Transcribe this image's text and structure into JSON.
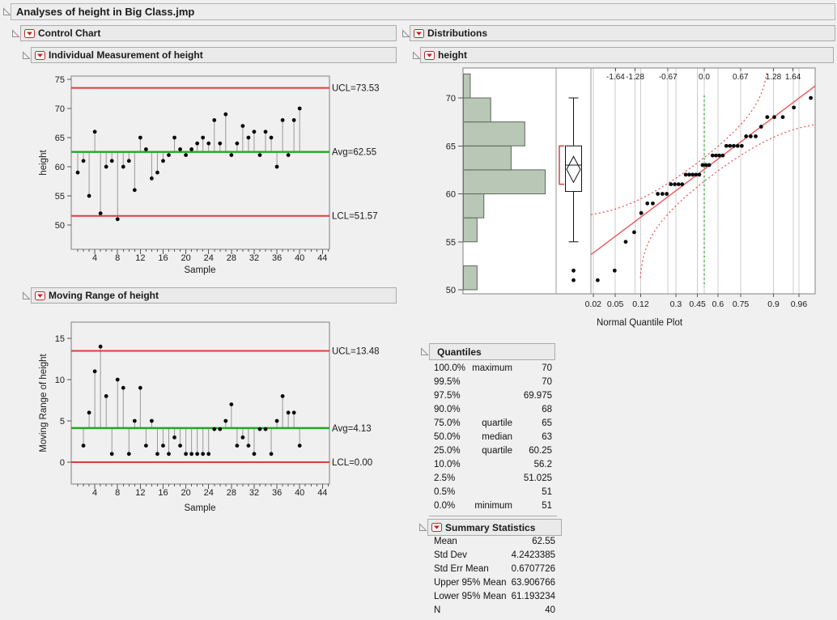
{
  "window": {
    "title": "Analyses of height in Big Class.jmp"
  },
  "sections": {
    "control_chart": {
      "title": "Control Chart"
    },
    "individual": {
      "title": "Individual Measurement of height"
    },
    "moving_range": {
      "title": "Moving Range of height"
    },
    "distributions": {
      "title": "Distributions"
    },
    "height_dist": {
      "title": "height"
    },
    "quantiles": {
      "title": "Quantiles"
    },
    "summary": {
      "title": "Summary Statistics"
    }
  },
  "chart_data": [
    {
      "type": "scatter",
      "name": "individual-measurement-of-height",
      "xlabel": "Sample",
      "ylabel": "height",
      "x_start": 1,
      "values": [
        59,
        61,
        55,
        66,
        52,
        60,
        61,
        51,
        60,
        61,
        56,
        65,
        63,
        58,
        59,
        61,
        62,
        65,
        63,
        62,
        63,
        64,
        65,
        64,
        68,
        64,
        69,
        62,
        64,
        67,
        65,
        66,
        62,
        66,
        65,
        60,
        68,
        62,
        68,
        70
      ],
      "ucl": 73.53,
      "avg": 62.55,
      "lcl": 51.57,
      "ucl_label": "UCL=73.53",
      "avg_label": "Avg=62.55",
      "lcl_label": "LCL=51.57",
      "yticks": [
        50,
        55,
        60,
        65,
        70,
        75
      ],
      "xticks_major": [
        4,
        8,
        12,
        16,
        20,
        24,
        28,
        32,
        36,
        40,
        44
      ],
      "xlim": [
        0,
        45
      ],
      "ylim": [
        46,
        75.6
      ],
      "grid": false
    },
    {
      "type": "scatter",
      "name": "moving-range-of-height",
      "xlabel": "Sample",
      "ylabel": "Moving Range of height",
      "x_start": 2,
      "values": [
        2,
        6,
        11,
        14,
        8,
        1,
        10,
        9,
        1,
        5,
        9,
        2,
        5,
        1,
        2,
        1,
        3,
        2,
        1,
        1,
        1,
        1,
        1,
        4,
        4,
        5,
        7,
        2,
        3,
        2,
        1,
        4,
        4,
        1,
        5,
        8,
        6,
        6,
        2
      ],
      "ucl": 13.48,
      "avg": 4.13,
      "lcl": 0,
      "ucl_label": "UCL=13.48",
      "avg_label": "Avg=4.13",
      "lcl_label": "LCL=0.00",
      "yticks": [
        0,
        5,
        10,
        15
      ],
      "xticks_major": [
        4,
        8,
        12,
        16,
        20,
        24,
        28,
        32,
        36,
        40,
        44
      ],
      "xlim": [
        0,
        45
      ],
      "ylim": [
        -2.6,
        17
      ],
      "grid": false
    },
    {
      "type": "distribution",
      "name": "height-distribution",
      "values": [
        59,
        61,
        55,
        66,
        52,
        60,
        61,
        51,
        60,
        61,
        56,
        65,
        63,
        58,
        59,
        61,
        62,
        65,
        63,
        62,
        63,
        64,
        65,
        64,
        68,
        64,
        69,
        62,
        64,
        67,
        65,
        66,
        62,
        66,
        65,
        60,
        68,
        62,
        68,
        70
      ],
      "yticks": [
        50,
        55,
        60,
        65,
        70
      ],
      "histogram": {
        "bin_start": 50,
        "bin_width": 2.5,
        "counts": [
          2,
          0,
          2,
          3,
          12,
          7,
          9,
          4,
          1
        ]
      },
      "boxplot": {
        "whisker_low": 55,
        "q1": 60.25,
        "median": 63,
        "q3": 65,
        "whisker_high": 70,
        "mean": 62.55,
        "mean_ci_low": 61.193234,
        "mean_ci_high": 63.906766,
        "outliers": [
          51,
          52
        ],
        "shortest_half": [
          61,
          65
        ]
      },
      "quantile_plot": {
        "xlabel": "Normal Quantile Plot",
        "mean": 62.55,
        "std_dev": 4.2423385,
        "band_delta": 0.115,
        "top_axis_labels": [
          "-1.64",
          "-1.28",
          "-0.67",
          "0.0",
          "0.67",
          "1.28",
          "1.64"
        ],
        "top_axis_z": [
          -1.64,
          -1.28,
          -0.67,
          0,
          0.67,
          1.28,
          1.64
        ],
        "bottom_axis_labels": [
          "0.02",
          "0.05",
          "0.12",
          "0.3",
          "0.45",
          "0.6",
          "0.75",
          "0.9",
          "0.96"
        ],
        "bottom_axis_p": [
          0.02,
          0.05,
          0.12,
          0.3,
          0.45,
          0.6,
          0.75,
          0.9,
          0.96
        ],
        "gridline_z": [
          -2.054,
          -1.645,
          -1.28,
          -1.175,
          -0.674,
          -0.524,
          -0.126,
          0,
          0.253,
          0.674,
          1.282,
          1.645,
          1.751
        ]
      }
    }
  ],
  "quantiles": {
    "rows": [
      {
        "pct": "100.0%",
        "label": "maximum",
        "value": "70"
      },
      {
        "pct": "99.5%",
        "label": "",
        "value": "70"
      },
      {
        "pct": "97.5%",
        "label": "",
        "value": "69.975"
      },
      {
        "pct": "90.0%",
        "label": "",
        "value": "68"
      },
      {
        "pct": "75.0%",
        "label": "quartile",
        "value": "65"
      },
      {
        "pct": "50.0%",
        "label": "median",
        "value": "63"
      },
      {
        "pct": "25.0%",
        "label": "quartile",
        "value": "60.25"
      },
      {
        "pct": "10.0%",
        "label": "",
        "value": "56.2"
      },
      {
        "pct": "2.5%",
        "label": "",
        "value": "51.025"
      },
      {
        "pct": "0.5%",
        "label": "",
        "value": "51"
      },
      {
        "pct": "0.0%",
        "label": "minimum",
        "value": "51"
      }
    ]
  },
  "summary": {
    "rows": [
      {
        "label": "Mean",
        "value": "62.55"
      },
      {
        "label": "Std Dev",
        "value": "4.2423385"
      },
      {
        "label": "Std Err Mean",
        "value": "0.6707726"
      },
      {
        "label": "Upper 95% Mean",
        "value": "63.906766"
      },
      {
        "label": "Lower 95% Mean",
        "value": "61.193234"
      },
      {
        "label": "N",
        "value": "40"
      }
    ]
  },
  "colors": {
    "limit_red": "#e23b3b",
    "avg_green": "#1faa1f",
    "needle_gray": "#999999",
    "point_black": "#0a0a0a",
    "hist_fill": "#b9c7b6",
    "hist_stroke": "#5a685a",
    "band_red": "#ee4b50",
    "normal_green": "#6cc56c",
    "gridline": "#cccccc",
    "frame": "#808080",
    "menu_red": "#c41f24",
    "bracket_red": "#d04545"
  }
}
